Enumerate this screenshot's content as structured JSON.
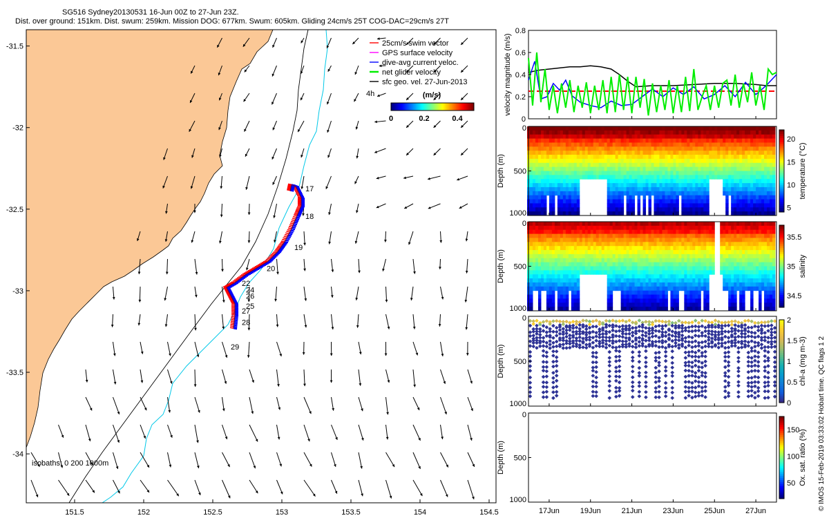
{
  "title": {
    "line1": "SG516 Sydney20130531 16-Jun 00Z to 27-Jun 23Z.",
    "line2": "Dist. over ground: 151km. Dist. swum: 259km. Mission DOG: 677km. Swum: 605km. Gliding 24cm/s 25T COG-DAC=29cm/s 27T"
  },
  "credit": "© IMOS 15-Feb-2019 03:33:02 Hobart time. QC flags 1  2",
  "colors": {
    "land": "#fbc896",
    "isobath_200": "#000000",
    "isobath_1000": "#00c8e8",
    "swim": "#ff0000",
    "gps": "#ff00ff",
    "dac": "#0000ff",
    "net": "#00ee00",
    "sfc": "#000000"
  },
  "chart_data": [
    {
      "type": "map",
      "name": "track-map",
      "x_ticks": [
        "151.5",
        "152",
        "152.5",
        "153",
        "153.5",
        "154",
        "154.5"
      ],
      "y_ticks": [
        "-31.5",
        "-32",
        "-32.5",
        "-33",
        "-33.5",
        "-34"
      ],
      "xlim": [
        151.15,
        154.55
      ],
      "ylim": [
        -34.3,
        -31.4
      ],
      "legend": [
        {
          "label": "25cm/s swim vector",
          "color": "#ff0000"
        },
        {
          "label": "GPS surface velocity",
          "color": "#ff00ff"
        },
        {
          "label": "dive-avg current veloc.",
          "color": "#0000ff"
        },
        {
          "label": "net glider velocity",
          "color": "#00ee00"
        },
        {
          "label": "sfc geo. vel. 27-Jun-2013",
          "color": "#000000"
        }
      ],
      "colorbar": {
        "label": "(m/s)",
        "ticks": [
          "0",
          "0.2",
          "0.4"
        ],
        "range": [
          0,
          0.5
        ]
      },
      "time_marker": "4h",
      "isobaths_label": "isobaths: 0   200   1000m",
      "day_labels": [
        {
          "text": "17",
          "lon": 153.17,
          "lat": -32.39
        },
        {
          "text": "18",
          "lon": 153.17,
          "lat": -32.56
        },
        {
          "text": "19",
          "lon": 153.09,
          "lat": -32.75
        },
        {
          "text": "20",
          "lon": 152.89,
          "lat": -32.88
        },
        {
          "text": "22",
          "lon": 152.71,
          "lat": -32.97
        },
        {
          "text": "24",
          "lon": 152.74,
          "lat": -33.01
        },
        {
          "text": "26",
          "lon": 152.74,
          "lat": -33.05
        },
        {
          "text": "25",
          "lon": 152.74,
          "lat": -33.11
        },
        {
          "text": "27",
          "lon": 152.71,
          "lat": -33.14
        },
        {
          "text": "28",
          "lon": 152.71,
          "lat": -33.21
        },
        {
          "text": "29",
          "lon": 152.63,
          "lat": -33.36
        }
      ],
      "track": [
        [
          152.65,
          -33.23
        ],
        [
          152.66,
          -33.15
        ],
        [
          152.66,
          -33.08
        ],
        [
          152.63,
          -33.03
        ],
        [
          152.6,
          -32.98
        ],
        [
          152.66,
          -32.95
        ],
        [
          152.74,
          -32.9
        ],
        [
          152.82,
          -32.86
        ],
        [
          152.9,
          -32.82
        ],
        [
          152.97,
          -32.76
        ],
        [
          153.02,
          -32.7
        ],
        [
          153.07,
          -32.62
        ],
        [
          153.11,
          -32.54
        ],
        [
          153.14,
          -32.48
        ],
        [
          153.14,
          -32.43
        ],
        [
          153.1,
          -32.36
        ],
        [
          153.07,
          -32.35
        ],
        [
          153.06,
          -32.39
        ]
      ]
    },
    {
      "type": "line",
      "name": "velocity-panel",
      "ylabel": "velocity magnitude (m/s)",
      "y_ticks": [
        "0",
        "0.2",
        "0.4",
        "0.6",
        "0.8"
      ],
      "ylim": [
        0,
        0.8
      ],
      "xlim": [
        16,
        28
      ],
      "series": [
        {
          "color": "#000000",
          "x": [
            16,
            16.5,
            17,
            17.5,
            18,
            18.5,
            19,
            19.5,
            20,
            20.4,
            20.8,
            21.2,
            22,
            23,
            24,
            25,
            26,
            27,
            27.5,
            28
          ],
          "values": [
            0.42,
            0.44,
            0.45,
            0.46,
            0.47,
            0.47,
            0.48,
            0.47,
            0.45,
            0.4,
            0.34,
            0.29,
            0.3,
            0.3,
            0.31,
            0.32,
            0.32,
            0.31,
            0.3,
            0.3
          ]
        },
        {
          "color": "#ff0000",
          "dashed": true,
          "x": [
            16,
            28
          ],
          "values": [
            0.25,
            0.25
          ]
        },
        {
          "color": "#0000ff",
          "x": [
            16,
            16.3,
            16.6,
            16.9,
            17.2,
            17.5,
            17.8,
            18.1,
            18.5,
            19,
            19.5,
            20,
            20.5,
            21,
            21.5,
            22,
            22.5,
            23,
            23.5,
            24,
            24.5,
            25,
            25.5,
            26,
            26.5,
            27,
            27.5,
            27.8,
            28
          ],
          "values": [
            0.35,
            0.52,
            0.18,
            0.2,
            0.32,
            0.26,
            0.35,
            0.21,
            0.15,
            0.12,
            0.1,
            0.16,
            0.12,
            0.13,
            0.2,
            0.27,
            0.2,
            0.28,
            0.22,
            0.29,
            0.18,
            0.22,
            0.3,
            0.2,
            0.33,
            0.22,
            0.3,
            0.36,
            0.4
          ]
        },
        {
          "color": "#00ee00",
          "x": [
            16,
            16.2,
            16.4,
            16.6,
            16.8,
            17,
            17.2,
            17.4,
            17.6,
            17.8,
            18,
            18.2,
            18.4,
            18.6,
            18.8,
            19,
            19.2,
            19.4,
            19.6,
            19.8,
            20,
            20.2,
            20.4,
            20.6,
            20.8,
            21,
            21.2,
            21.4,
            21.6,
            21.8,
            22,
            22.2,
            22.4,
            22.6,
            22.8,
            23,
            23.2,
            23.4,
            23.6,
            23.8,
            24,
            24.2,
            24.4,
            24.6,
            24.8,
            25,
            25.2,
            25.4,
            25.6,
            25.8,
            26,
            26.2,
            26.4,
            26.6,
            26.8,
            27,
            27.2,
            27.4,
            27.6,
            27.8,
            28
          ],
          "values": [
            0.55,
            0.12,
            0.6,
            0.15,
            0.45,
            0.08,
            0.3,
            0.05,
            0.32,
            0.1,
            0.35,
            0.06,
            0.3,
            0.1,
            0.33,
            0.05,
            0.3,
            0.08,
            0.35,
            0.05,
            0.38,
            0.06,
            0.4,
            0.08,
            0.38,
            0.05,
            0.38,
            0.1,
            0.36,
            0.03,
            0.32,
            0.06,
            0.3,
            0.08,
            0.35,
            0.05,
            0.3,
            0.06,
            0.38,
            0.07,
            0.45,
            0.08,
            0.2,
            0.3,
            0.08,
            0.3,
            0.1,
            0.32,
            0.35,
            0.12,
            0.4,
            0.1,
            0.32,
            0.15,
            0.42,
            0.12,
            0.3,
            0.08,
            0.45,
            0.4,
            0.42
          ]
        }
      ]
    },
    {
      "type": "heatmap",
      "name": "temperature-panel",
      "ylabel": "Depth (m)",
      "y_ticks": [
        "0",
        "500",
        "1000"
      ],
      "colorbar_label": "temperature (°C)",
      "colorbar_ticks": [
        "5",
        "10",
        "15",
        "20"
      ],
      "colorbar_range": [
        4,
        22
      ]
    },
    {
      "type": "heatmap",
      "name": "salinity-panel",
      "ylabel": "Depth (m)",
      "y_ticks": [
        "0",
        "500",
        "1000"
      ],
      "colorbar_label": "salinity",
      "colorbar_ticks": [
        "34.5",
        "35",
        "35.5"
      ],
      "colorbar_range": [
        34.3,
        35.7
      ]
    },
    {
      "type": "scatter",
      "name": "chlorophyll-panel",
      "ylabel": "Depth (m)",
      "y_ticks": [
        "0",
        "500",
        "1000"
      ],
      "colorbar_label": "chl-a (mg m-3)",
      "colorbar_ticks": [
        "0",
        "0.5",
        "1",
        "1.5",
        "2"
      ],
      "colorbar_range": [
        0,
        2
      ]
    },
    {
      "type": "heatmap",
      "name": "oxygen-panel",
      "ylabel": "Depth (m)",
      "y_ticks": [
        "0",
        "500",
        "1000"
      ],
      "x_ticks": [
        "17Jun",
        "19Jun",
        "21Jun",
        "23Jun",
        "25Jun",
        "27Jun"
      ],
      "colorbar_label": "Ox. sat. ratio (%)",
      "colorbar_ticks": [
        "50",
        "100",
        "150"
      ],
      "colorbar_range": [
        20,
        175
      ]
    }
  ]
}
